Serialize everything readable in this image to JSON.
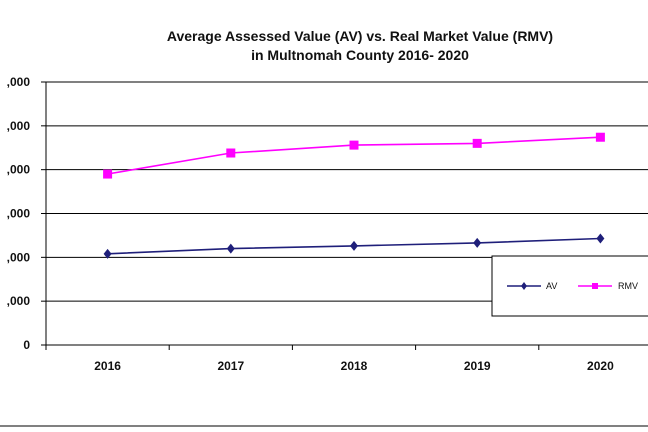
{
  "chart_data": {
    "type": "line",
    "title_line1": "Average Assessed  Value (AV) vs. Real Market Value (RMV)",
    "title_line2": "in Multnomah County  2016- 2020",
    "categories": [
      "2016",
      "2017",
      "2018",
      "2019",
      "2020"
    ],
    "y_tick_labels": [
      "0",
      ",000",
      ",000",
      ",000",
      ",000",
      ",000",
      ",000"
    ],
    "y_ticks": [
      0,
      1,
      2,
      3,
      4,
      5,
      6
    ],
    "ylim": [
      0,
      6
    ],
    "grid": true,
    "legend_position": "right",
    "series": [
      {
        "name": "AV",
        "color": "#1f1f7a",
        "marker": "diamond",
        "values": [
          2.08,
          2.2,
          2.26,
          2.33,
          2.43
        ]
      },
      {
        "name": "RMV",
        "color": "#ff00ff",
        "marker": "square",
        "values": [
          3.9,
          4.38,
          4.56,
          4.6,
          4.74
        ]
      }
    ]
  }
}
